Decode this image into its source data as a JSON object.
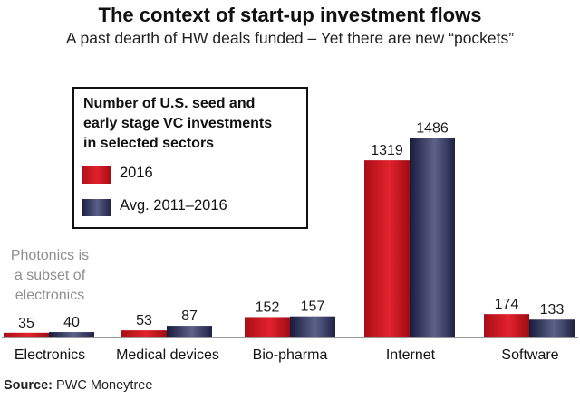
{
  "title": "The context of start-up investment flows",
  "subtitle": "A past dearth of HW deals funded – Yet there are new “pockets”",
  "annotation": [
    "Photonics is",
    "a subset of",
    "electronics"
  ],
  "source": {
    "label": "Source:",
    "text": "PWC Moneytree"
  },
  "colors": {
    "series_2016": "#d71f27",
    "series_avg": "#2a2d55"
  },
  "chart_data": {
    "type": "bar",
    "legend_title": [
      "Number of U.S. seed and",
      "early stage VC investments",
      "in selected sectors"
    ],
    "categories": [
      "Electronics",
      "Medical devices",
      "Bio-pharma",
      "Internet",
      "Software"
    ],
    "series": [
      {
        "name": "2016",
        "values": [
          35,
          53,
          152,
          1319,
          174
        ]
      },
      {
        "name": "Avg. 2011–2016",
        "values": [
          40,
          87,
          157,
          1486,
          133
        ]
      }
    ],
    "value_labels": [
      [
        "35",
        "53",
        "152",
        "1319",
        "174"
      ],
      [
        "40",
        "87",
        "157",
        "1486",
        "133"
      ]
    ],
    "grid": false,
    "legend_placement": "top-left"
  }
}
